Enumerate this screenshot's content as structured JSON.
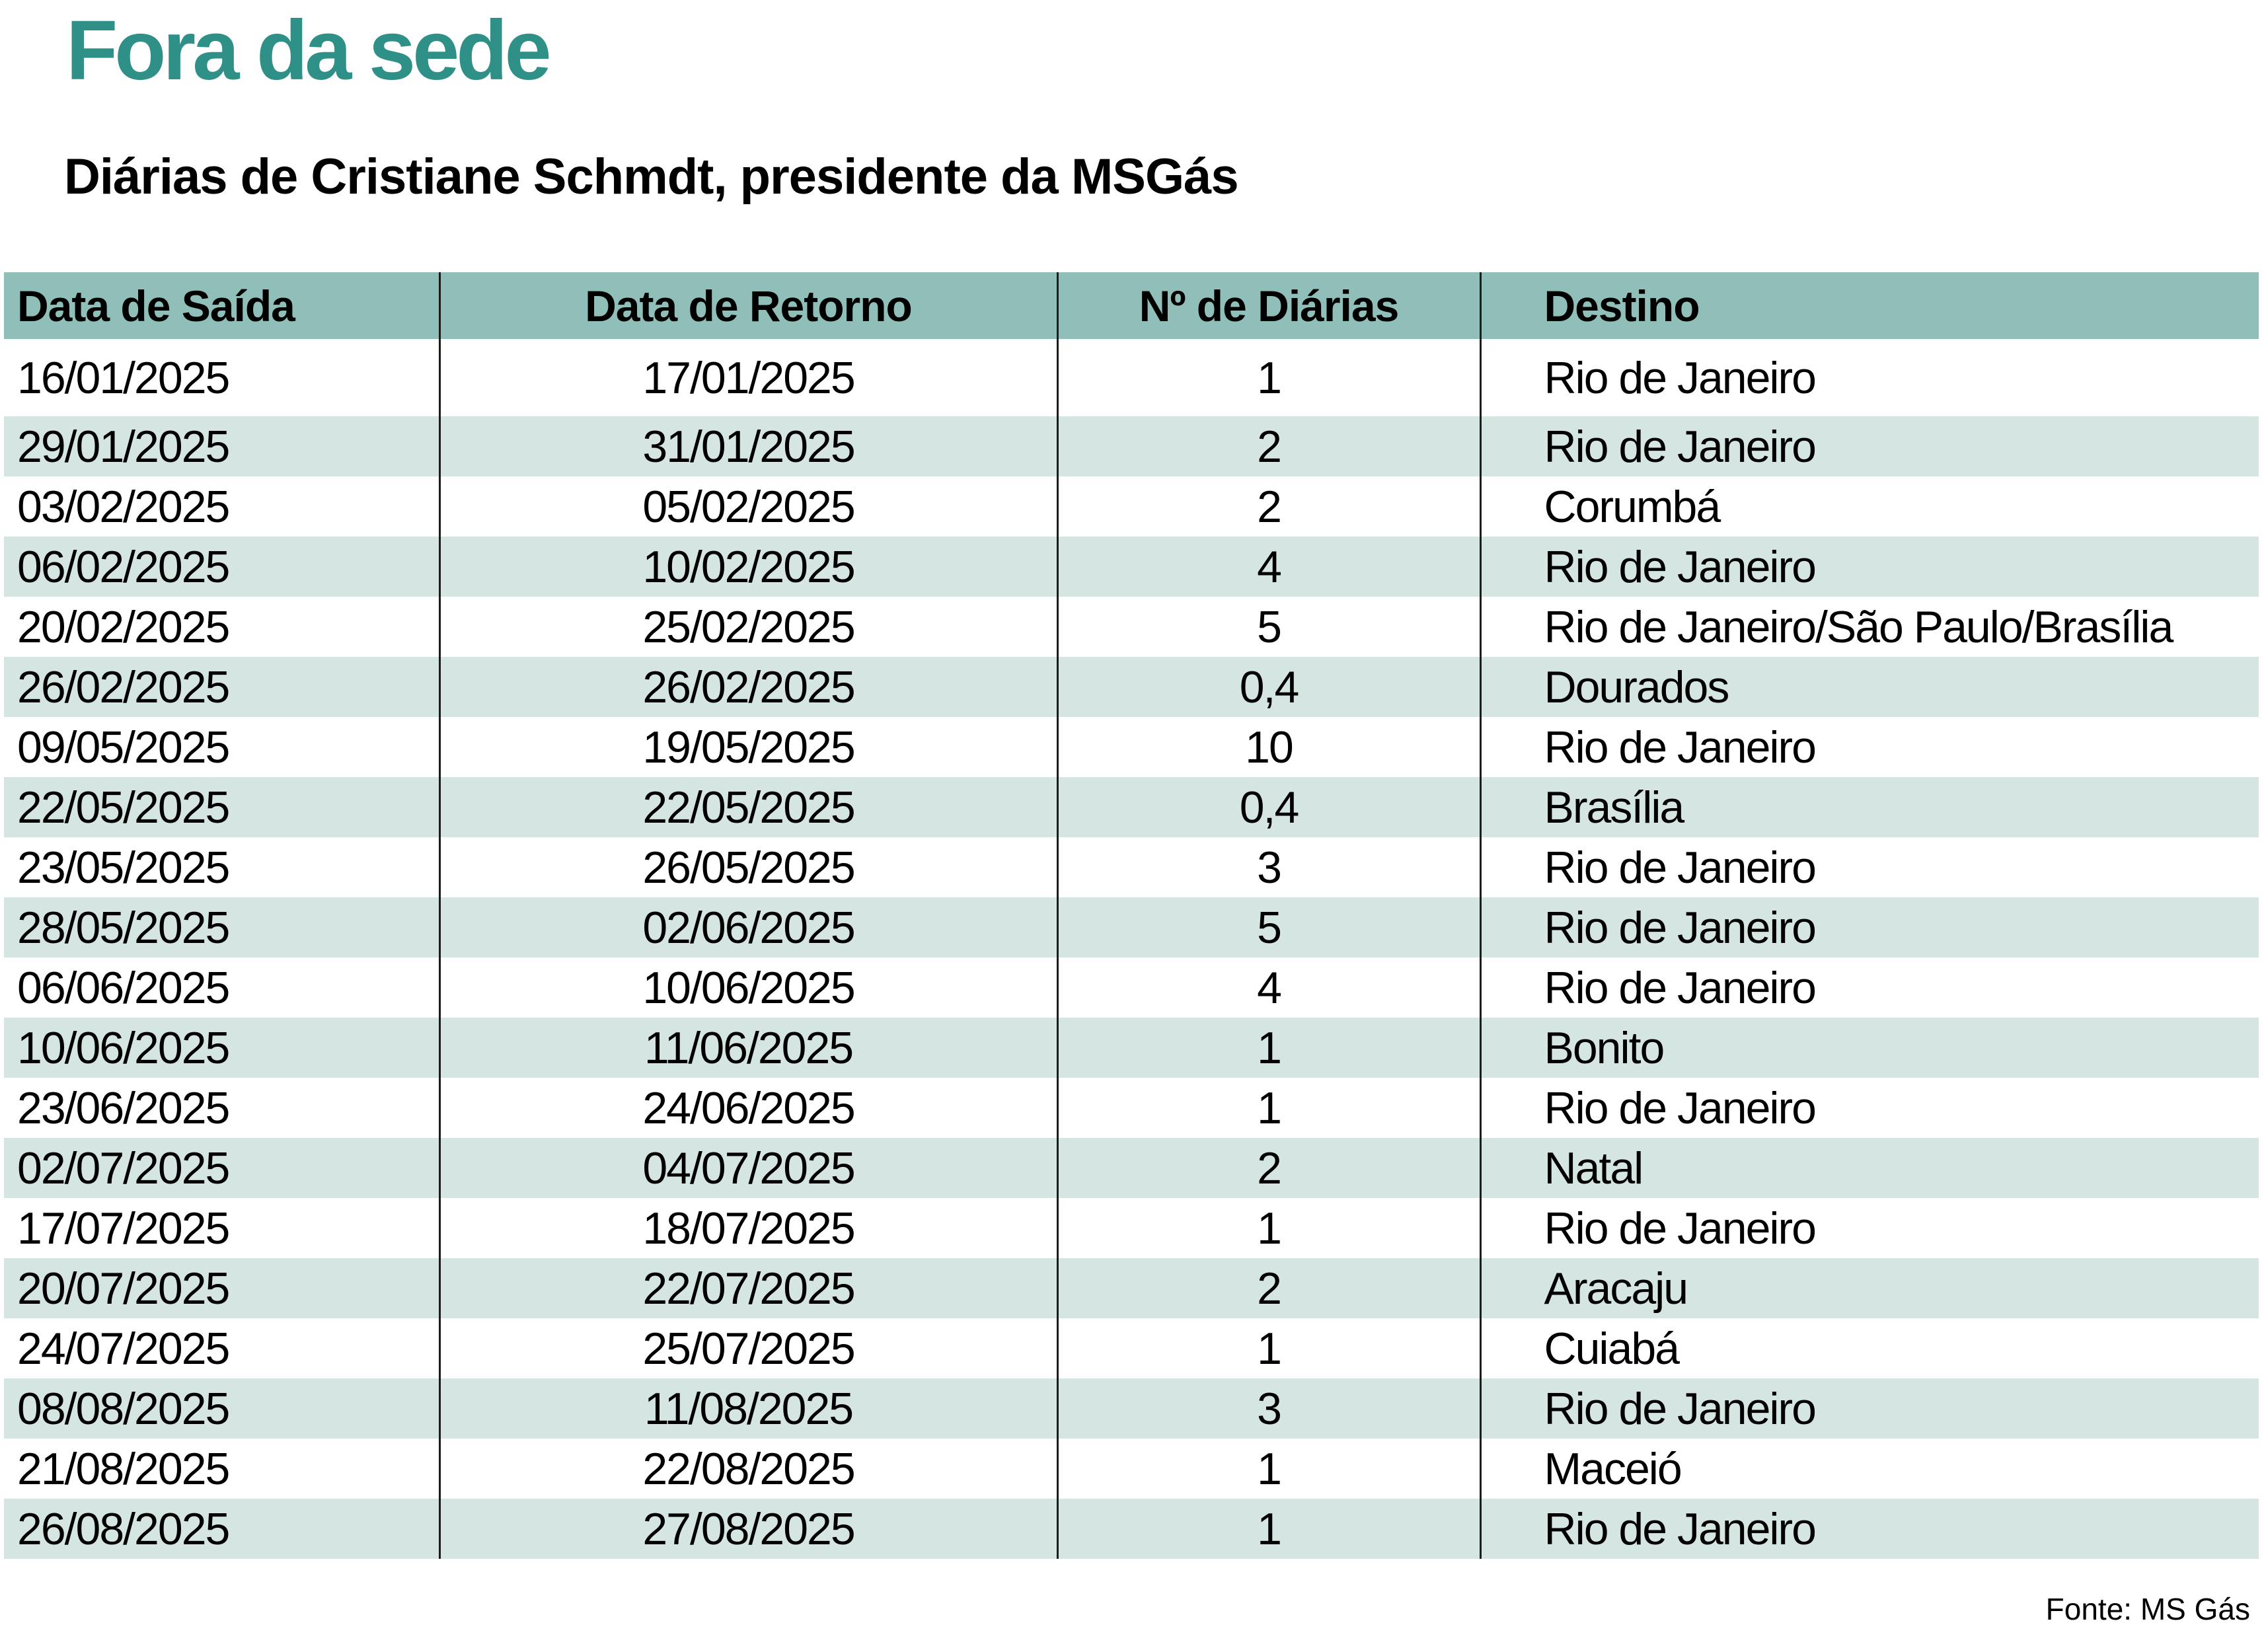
{
  "title": "Fora da sede",
  "subtitle": "Diárias de Cristiane Schmdt, presidente da MSGás",
  "source": "Fonte: MS Gás",
  "colors": {
    "title_color": "#2e9086",
    "header_bg": "#8fbfb8",
    "row_alt_bg": "#d5e5e1",
    "divider_color": "#1c1c1c",
    "text_color": "#000000"
  },
  "table": {
    "columns": [
      "Data de Saída",
      "Data de Retorno",
      "Nº de Diárias",
      "Destino"
    ],
    "rows": [
      [
        "16/01/2025",
        "17/01/2025",
        "1",
        "Rio de Janeiro"
      ],
      [
        "29/01/2025",
        "31/01/2025",
        "2",
        "Rio de Janeiro"
      ],
      [
        "03/02/2025",
        "05/02/2025",
        "2",
        "Corumbá"
      ],
      [
        "06/02/2025",
        "10/02/2025",
        "4",
        "Rio de Janeiro"
      ],
      [
        "20/02/2025",
        "25/02/2025",
        "5",
        "Rio de Janeiro/São Paulo/Brasília"
      ],
      [
        "26/02/2025",
        "26/02/2025",
        "0,4",
        "Dourados"
      ],
      [
        "09/05/2025",
        "19/05/2025",
        "10",
        "Rio de Janeiro"
      ],
      [
        "22/05/2025",
        "22/05/2025",
        "0,4",
        "Brasília"
      ],
      [
        "23/05/2025",
        "26/05/2025",
        "3",
        "Rio de Janeiro"
      ],
      [
        "28/05/2025",
        "02/06/2025",
        "5",
        "Rio de Janeiro"
      ],
      [
        "06/06/2025",
        "10/06/2025",
        "4",
        "Rio de Janeiro"
      ],
      [
        "10/06/2025",
        "11/06/2025",
        "1",
        "Bonito"
      ],
      [
        "23/06/2025",
        "24/06/2025",
        "1",
        "Rio de Janeiro"
      ],
      [
        "02/07/2025",
        "04/07/2025",
        "2",
        "Natal"
      ],
      [
        "17/07/2025",
        "18/07/2025",
        "1",
        "Rio de Janeiro"
      ],
      [
        "20/07/2025",
        "22/07/2025",
        "2",
        "Aracaju"
      ],
      [
        "24/07/2025",
        "25/07/2025",
        "1",
        "Cuiabá"
      ],
      [
        "08/08/2025",
        "11/08/2025",
        "3",
        "Rio de Janeiro"
      ],
      [
        "21/08/2025",
        "22/08/2025",
        "1",
        "Maceió"
      ],
      [
        "26/08/2025",
        "27/08/2025",
        "1",
        "Rio de Janeiro"
      ]
    ]
  },
  "chart_data": {
    "type": "table",
    "title": "Fora da sede",
    "subtitle": "Diárias de Cristiane Schmdt, presidente da MSGás",
    "source": "Fonte: MS Gás",
    "columns": [
      "Data de Saída",
      "Data de Retorno",
      "Nº de Diárias",
      "Destino"
    ],
    "rows": [
      [
        "16/01/2025",
        "17/01/2025",
        "1",
        "Rio de Janeiro"
      ],
      [
        "29/01/2025",
        "31/01/2025",
        "2",
        "Rio de Janeiro"
      ],
      [
        "03/02/2025",
        "05/02/2025",
        "2",
        "Corumbá"
      ],
      [
        "06/02/2025",
        "10/02/2025",
        "4",
        "Rio de Janeiro"
      ],
      [
        "20/02/2025",
        "25/02/2025",
        "5",
        "Rio de Janeiro/São Paulo/Brasília"
      ],
      [
        "26/02/2025",
        "26/02/2025",
        "0,4",
        "Dourados"
      ],
      [
        "09/05/2025",
        "19/05/2025",
        "10",
        "Rio de Janeiro"
      ],
      [
        "22/05/2025",
        "22/05/2025",
        "0,4",
        "Brasília"
      ],
      [
        "23/05/2025",
        "26/05/2025",
        "3",
        "Rio de Janeiro"
      ],
      [
        "28/05/2025",
        "02/06/2025",
        "5",
        "Rio de Janeiro"
      ],
      [
        "06/06/2025",
        "10/06/2025",
        "4",
        "Rio de Janeiro"
      ],
      [
        "10/06/2025",
        "11/06/2025",
        "1",
        "Bonito"
      ],
      [
        "23/06/2025",
        "24/06/2025",
        "1",
        "Rio de Janeiro"
      ],
      [
        "02/07/2025",
        "04/07/2025",
        "2",
        "Natal"
      ],
      [
        "17/07/2025",
        "18/07/2025",
        "1",
        "Rio de Janeiro"
      ],
      [
        "20/07/2025",
        "22/07/2025",
        "2",
        "Aracaju"
      ],
      [
        "24/07/2025",
        "25/07/2025",
        "1",
        "Cuiabá"
      ],
      [
        "08/08/2025",
        "11/08/2025",
        "3",
        "Rio de Janeiro"
      ],
      [
        "21/08/2025",
        "22/08/2025",
        "1",
        "Maceió"
      ],
      [
        "26/08/2025",
        "27/08/2025",
        "1",
        "Rio de Janeiro"
      ]
    ]
  }
}
